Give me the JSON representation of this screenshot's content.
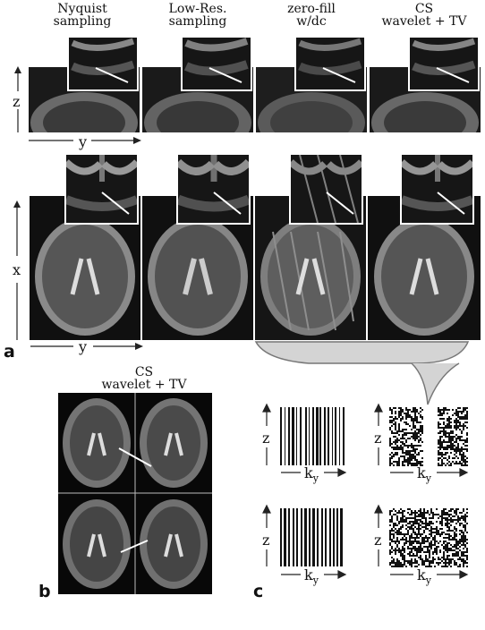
{
  "figure": {
    "panel_labels": {
      "a": "a",
      "b": "b",
      "c": "c"
    },
    "columns": [
      {
        "line1": "Nyquist",
        "line2": "sampling"
      },
      {
        "line1": "Low-Res.",
        "line2": "sampling"
      },
      {
        "line1": "zero-fill",
        "line2": "w/dc"
      },
      {
        "line1": "CS",
        "line2": "wavelet + TV"
      }
    ],
    "axes": {
      "z": "z",
      "y": "y",
      "x": "x",
      "ky_base": "k",
      "ky_sub": "y"
    },
    "panel_b_title": {
      "line1": "CS",
      "line2": "wavelet + TV"
    }
  }
}
